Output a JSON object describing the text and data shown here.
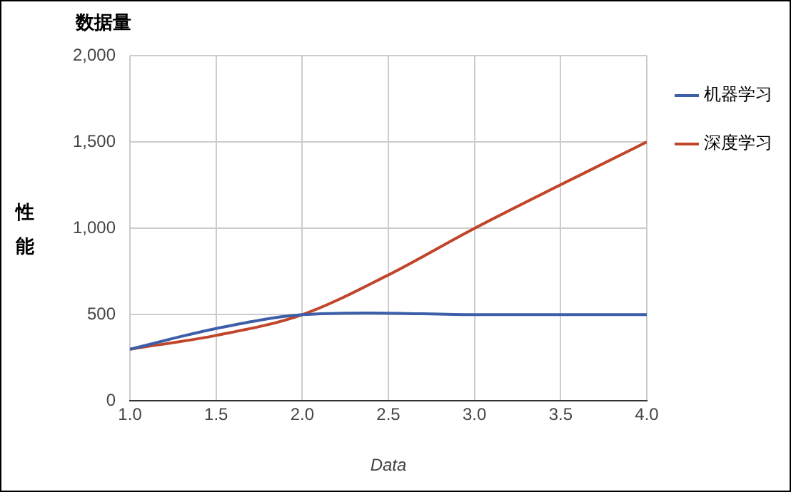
{
  "chart_data": {
    "type": "line",
    "title": "数据量",
    "xlabel": "Data",
    "ylabel": "性能",
    "xlim": [
      1,
      4
    ],
    "xticks": [
      {
        "value": 1,
        "label": "1.0"
      },
      {
        "value": 1.5,
        "label": "1.5"
      },
      {
        "value": 2,
        "label": "2.0"
      },
      {
        "value": 2.5,
        "label": "2.5"
      },
      {
        "value": 3,
        "label": "3.0"
      },
      {
        "value": 3.5,
        "label": "3.5"
      },
      {
        "value": 4,
        "label": "4.0"
      }
    ],
    "ylim": [
      0,
      2000
    ],
    "yticks": [
      0,
      500,
      {
        "value": 1000,
        "label": "1,000"
      },
      {
        "value": 1500,
        "label": "1,500"
      },
      {
        "value": 2000,
        "label": "2,000"
      }
    ],
    "series": [
      {
        "name": "机器学习",
        "color": "#3d5ea8",
        "x": [
          1,
          1.5,
          2,
          2.4,
          3,
          4
        ],
        "values": [
          300,
          420,
          500,
          510,
          500,
          500
        ]
      },
      {
        "name": "深度学习",
        "color": "#c0452a",
        "x": [
          1,
          1.5,
          2,
          2.5,
          3,
          4
        ],
        "values": [
          300,
          380,
          500,
          730,
          1000,
          1500
        ]
      }
    ],
    "grid": true,
    "legend": "top right",
    "marker": "none",
    "line_style": "solid"
  }
}
